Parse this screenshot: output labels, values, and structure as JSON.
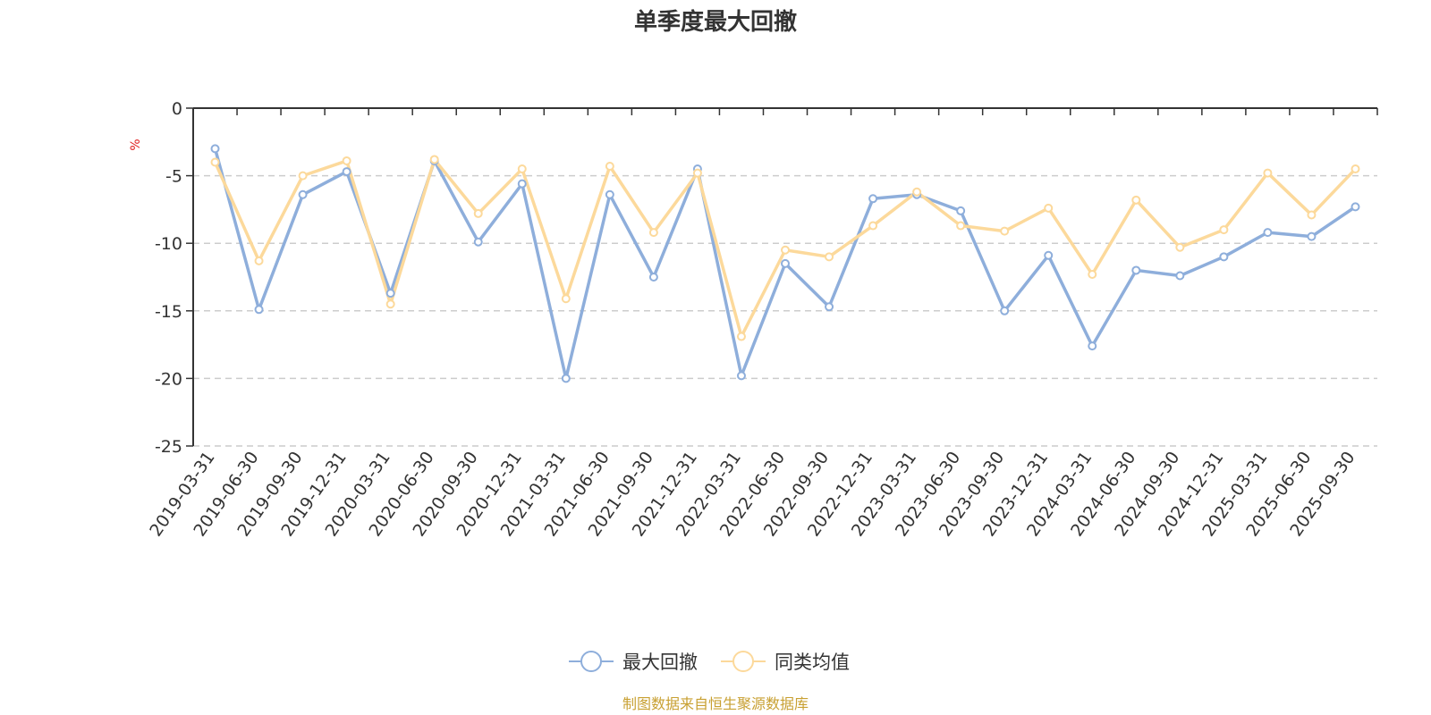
{
  "chart_data": {
    "type": "line",
    "title": "单季度最大回撤",
    "ylabel": "%",
    "xlabel": "",
    "ylim": [
      -25,
      0
    ],
    "yticks": [
      0,
      -5,
      -10,
      -15,
      -20,
      -25
    ],
    "grid": true,
    "legend_position": "bottom-center",
    "categories": [
      "2019-03-31",
      "2019-06-30",
      "2019-09-30",
      "2019-12-31",
      "2020-03-31",
      "2020-06-30",
      "2020-09-30",
      "2020-12-31",
      "2021-03-31",
      "2021-06-30",
      "2021-09-30",
      "2021-12-31",
      "2022-03-31",
      "2022-06-30",
      "2022-09-30",
      "2022-12-31",
      "2023-03-31",
      "2023-06-30",
      "2023-09-30",
      "2023-12-31",
      "2024-03-31",
      "2024-06-30",
      "2024-09-30",
      "2024-12-31",
      "2025-03-31",
      "2025-06-30",
      "2025-09-30"
    ],
    "series": [
      {
        "name": "最大回撤",
        "color": "#8eaedb",
        "values": [
          -3.0,
          -14.9,
          -6.4,
          -4.7,
          -13.7,
          -3.9,
          -9.9,
          -5.6,
          -20.0,
          -6.4,
          -12.5,
          -4.5,
          -19.8,
          -11.5,
          -14.7,
          -6.7,
          -6.4,
          -7.6,
          -15.0,
          -10.9,
          -17.6,
          -12.0,
          -12.4,
          -11.0,
          -9.2,
          -9.5,
          -7.3
        ]
      },
      {
        "name": "同类均值",
        "color": "#fcd99b",
        "values": [
          -4.0,
          -11.3,
          -5.0,
          -3.9,
          -14.5,
          -3.8,
          -7.8,
          -4.5,
          -14.1,
          -4.3,
          -9.2,
          -4.8,
          -16.9,
          -10.5,
          -11.0,
          -8.7,
          -6.2,
          -8.7,
          -9.1,
          -7.4,
          -12.3,
          -6.8,
          -10.3,
          -9.0,
          -4.8,
          -7.9,
          -4.5
        ]
      }
    ],
    "source": "制图数据来自恒生聚源数据库"
  }
}
